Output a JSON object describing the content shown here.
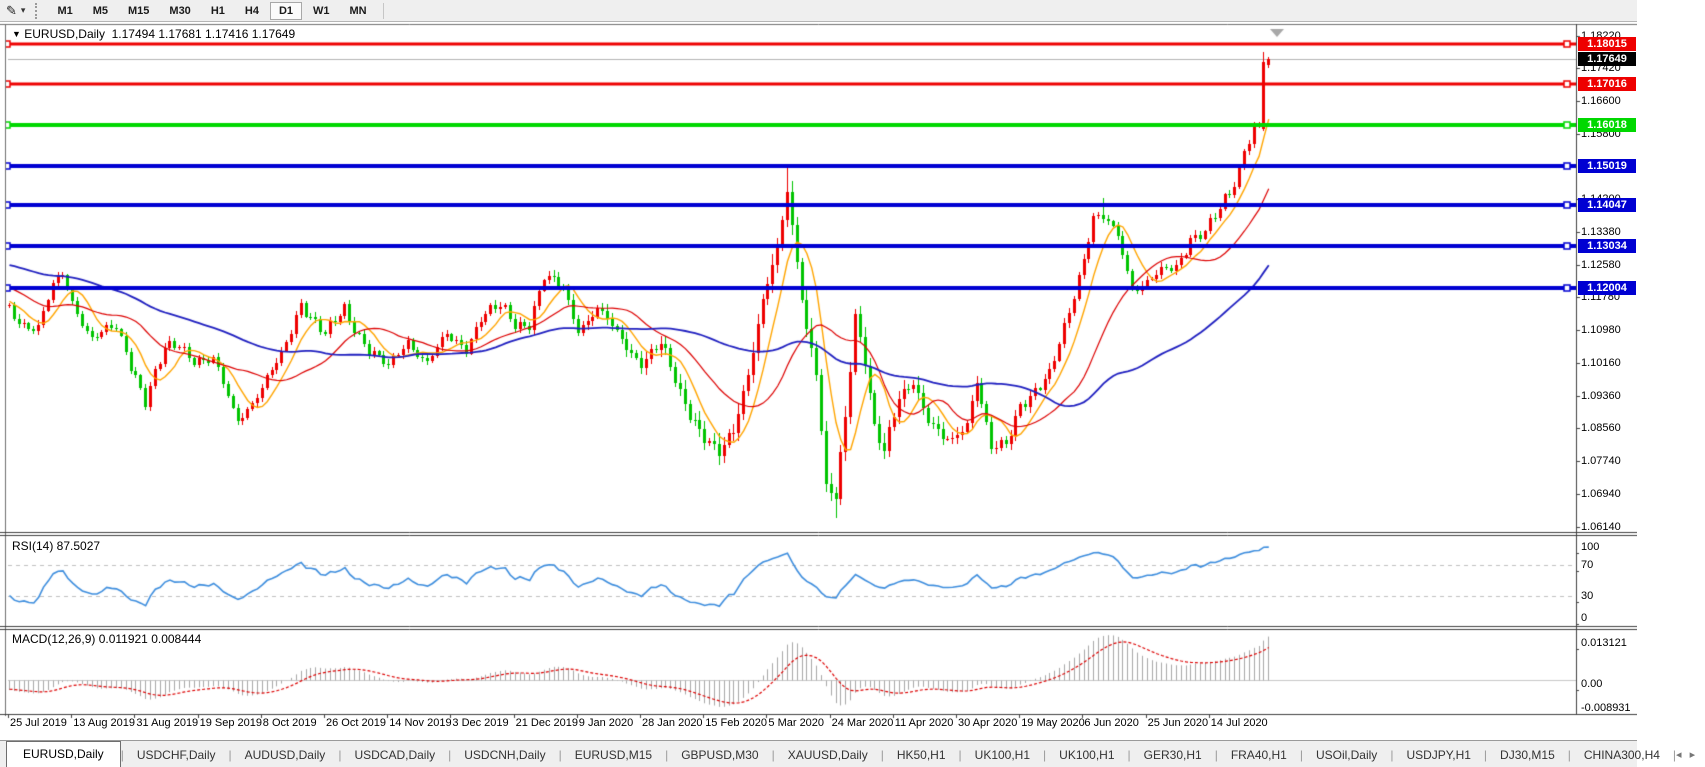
{
  "toolbar": {
    "timeframes": [
      "M1",
      "M5",
      "M15",
      "M30",
      "H1",
      "H4",
      "D1",
      "W1",
      "MN"
    ],
    "active_timeframe": "D1"
  },
  "icons": {
    "chart_tool": "✎",
    "dropdown_caret": "▾",
    "title_caret": "▼",
    "tab_scroll_left": "◂",
    "tab_scroll_right": "▸"
  },
  "chart": {
    "title": "EURUSD,Daily",
    "ohlc_text": "1.17494 1.17681 1.17416 1.17649",
    "current_price": "1.17649",
    "current_price_line_color": "#b4b4b4",
    "current_label_bg": "#000000",
    "hlines": [
      {
        "price": 1.18015,
        "label": "1.18015",
        "color": "#ee0000",
        "width": 3
      },
      {
        "price": 1.17016,
        "label": "1.17016",
        "color": "#ee0000",
        "width": 3
      },
      {
        "price": 1.16018,
        "label": "1.16018",
        "color": "#00d800",
        "width": 4
      },
      {
        "price": 1.15019,
        "label": "1.15019",
        "color": "#0000d2",
        "width": 4
      },
      {
        "price": 1.14047,
        "label": "1.14047",
        "color": "#0000d2",
        "width": 4
      },
      {
        "price": 1.13034,
        "label": "1.13034",
        "color": "#0000d2",
        "width": 4
      },
      {
        "price": 1.12004,
        "label": "1.12004",
        "color": "#0000d2",
        "width": 4
      }
    ]
  },
  "rsi": {
    "label": "RSI(14) 87.5027",
    "period": 14,
    "current": 87.5027,
    "ticks": [
      "100",
      "70",
      "30",
      "0"
    ],
    "levels": [
      70,
      30
    ],
    "line_color": "#3e8ede"
  },
  "macd": {
    "label": "MACD(12,26,9) 0.011921 0.008444",
    "fast": 12,
    "slow": 26,
    "signal_period": 9,
    "macd_value": 0.011921,
    "signal_value": 0.008444,
    "ticks": [
      "0.013121",
      "0.00",
      "-0.008931"
    ],
    "hist_color": "#a8a8a8",
    "signal_color": "#dd0000"
  },
  "tabs": [
    "EURUSD,Daily",
    "USDCHF,Daily",
    "AUDUSD,Daily",
    "USDCAD,Daily",
    "USDCNH,Daily",
    "EURUSD,M15",
    "GBPUSD,M30",
    "XAUUSD,Daily",
    "HK50,H1",
    "UK100,H1",
    "UK100,H1",
    "GER30,H1",
    "FRA40,H1",
    "USOil,Daily",
    "USDJPY,H1",
    "DJ30,M15",
    "CHINA300,H4"
  ],
  "active_tab": "EURUSD,Daily",
  "chart_data": {
    "type": "candlestick",
    "symbol": "EURUSD",
    "timeframe": "Daily",
    "last_bar": {
      "open": 1.17494,
      "high": 1.17681,
      "low": 1.17416,
      "close": 1.17649
    },
    "tall_bar": {
      "index": 258,
      "open": 1.1592,
      "high": 1.1781,
      "low": 1.1588,
      "close": 1.1758
    },
    "axis": {
      "price_max": 1.1843,
      "price_min": 1.0603,
      "rsi_range": [
        0,
        100
      ],
      "macd_range": [
        -0.0096,
        0.0138
      ]
    },
    "price_tick_labels": [
      "1.18220",
      "1.17420",
      "1.16600",
      "1.15800",
      "1.14200",
      "1.13380",
      "1.12580",
      "1.11780",
      "1.10980",
      "1.10160",
      "1.09360",
      "1.08560",
      "1.07740",
      "1.06940",
      "1.06140"
    ],
    "x_tick_labels": [
      "25 Jul 2019",
      "13 Aug 2019",
      "31 Aug 2019",
      "19 Sep 2019",
      "8 Oct 2019",
      "26 Oct 2019",
      "14 Nov 2019",
      "3 Dec 2019",
      "21 Dec 2019",
      "9 Jan 2020",
      "28 Jan 2020",
      "15 Feb 2020",
      "5 Mar 2020",
      "24 Mar 2020",
      "11 Apr 2020",
      "30 Apr 2020",
      "19 May 2020",
      "6 Jun 2020",
      "25 Jun 2020",
      "14 Jul 2020"
    ],
    "colors": {
      "up": "#ee0000",
      "down": "#00c400",
      "ma_fast": "#ffa500",
      "ma_mid": "#dd0000",
      "ma_slow": "#2020c0"
    },
    "ma_periods": {
      "fast": 7,
      "mid": 20,
      "slow": 55
    },
    "pre_anchors": [
      [
        -60,
        1.132
      ],
      [
        -45,
        1.1275
      ],
      [
        -30,
        1.131
      ],
      [
        -15,
        1.1235
      ],
      [
        -1,
        1.115
      ]
    ],
    "close_anchors": [
      [
        0,
        1.1145
      ],
      [
        3,
        1.1115
      ],
      [
        6,
        1.1105
      ],
      [
        9,
        1.12
      ],
      [
        11,
        1.123
      ],
      [
        13,
        1.117
      ],
      [
        17,
        1.1078
      ],
      [
        22,
        1.11
      ],
      [
        26,
        1.099
      ],
      [
        28,
        1.0926
      ],
      [
        32,
        1.1045
      ],
      [
        35,
        1.1062
      ],
      [
        38,
        1.103
      ],
      [
        42,
        1.102
      ],
      [
        46,
        1.09
      ],
      [
        47,
        1.088
      ],
      [
        52,
        1.0955
      ],
      [
        56,
        1.103
      ],
      [
        60,
        1.117
      ],
      [
        65,
        1.108
      ],
      [
        69,
        1.1148
      ],
      [
        74,
        1.105
      ],
      [
        78,
        1.1
      ],
      [
        82,
        1.1075
      ],
      [
        86,
        1.1018
      ],
      [
        90,
        1.1078
      ],
      [
        94,
        1.1058
      ],
      [
        97,
        1.113
      ],
      [
        101,
        1.115
      ],
      [
        104,
        1.1115
      ],
      [
        107,
        1.1118
      ],
      [
        110,
        1.1225
      ],
      [
        114,
        1.1195
      ],
      [
        117,
        1.1105
      ],
      [
        121,
        1.1148
      ],
      [
        125,
        1.1085
      ],
      [
        130,
        1.1022
      ],
      [
        134,
        1.1058
      ],
      [
        138,
        1.0945
      ],
      [
        143,
        1.0832
      ],
      [
        146,
        1.0785
      ],
      [
        149,
        1.085
      ],
      [
        152,
        1.1
      ],
      [
        155,
        1.117
      ],
      [
        158,
        1.1285
      ],
      [
        160,
        1.144
      ],
      [
        162,
        1.127
      ],
      [
        164,
        1.111
      ],
      [
        166,
        1.0995
      ],
      [
        168,
        1.07
      ],
      [
        170,
        1.068
      ],
      [
        172,
        1.0885
      ],
      [
        174,
        1.114
      ],
      [
        176,
        1.103
      ],
      [
        178,
        1.0855
      ],
      [
        180,
        1.079
      ],
      [
        183,
        1.093
      ],
      [
        186,
        1.098
      ],
      [
        189,
        1.0875
      ],
      [
        192,
        1.0822
      ],
      [
        194,
        1.0824
      ],
      [
        197,
        1.0876
      ],
      [
        199,
        1.098
      ],
      [
        202,
        1.08
      ],
      [
        205,
        1.081
      ],
      [
        208,
        1.092
      ],
      [
        211,
        1.095
      ],
      [
        214,
        1.098
      ],
      [
        217,
        1.11
      ],
      [
        220,
        1.1235
      ],
      [
        223,
        1.1375
      ],
      [
        225,
        1.1368
      ],
      [
        228,
        1.1325
      ],
      [
        231,
        1.1205
      ],
      [
        234,
        1.122
      ],
      [
        237,
        1.1235
      ],
      [
        240,
        1.1248
      ],
      [
        243,
        1.133
      ],
      [
        246,
        1.1342
      ],
      [
        249,
        1.1388
      ],
      [
        252,
        1.1452
      ],
      [
        254,
        1.154
      ],
      [
        255,
        1.156
      ],
      [
        256,
        1.1598
      ],
      [
        257,
        1.1605
      ],
      [
        258,
        1.1758
      ],
      [
        259,
        1.17649
      ]
    ],
    "extreme_highs": [
      [
        160,
        1.1495
      ],
      [
        225,
        1.1422
      ],
      [
        258,
        1.1781
      ]
    ],
    "extreme_lows": [
      [
        146,
        1.0777
      ],
      [
        170,
        1.0636
      ]
    ]
  }
}
